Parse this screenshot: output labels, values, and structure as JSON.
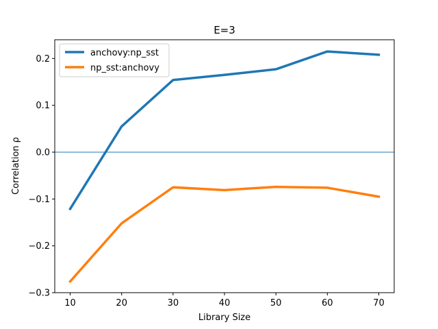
{
  "chart_data": {
    "type": "line",
    "title": "E=3",
    "xlabel": "Library Size",
    "ylabel": "Correlation ρ",
    "x": [
      10,
      20,
      30,
      40,
      50,
      60,
      70
    ],
    "xlim": [
      7,
      73
    ],
    "ylim": [
      -0.3,
      0.24
    ],
    "xticks": [
      10,
      20,
      30,
      40,
      50,
      60,
      70
    ],
    "yticks": [
      -0.3,
      -0.2,
      -0.1,
      0.0,
      0.1,
      0.2
    ],
    "ytick_labels": [
      "−0.3",
      "−0.2",
      "−0.1",
      "0.0",
      "0.1",
      "0.2"
    ],
    "series": [
      {
        "name": "anchovy:np_sst",
        "color": "#1f77b4",
        "values": [
          -0.121,
          0.055,
          0.154,
          0.165,
          0.177,
          0.215,
          0.208
        ]
      },
      {
        "name": "np_sst:anchovy",
        "color": "#ff7f0e",
        "values": [
          -0.276,
          -0.152,
          -0.075,
          -0.081,
          -0.074,
          -0.076,
          -0.095
        ]
      }
    ],
    "reference_line": {
      "y": 0.0,
      "color": "#1f77b4"
    },
    "legend_position": "upper-left",
    "grid": false
  }
}
